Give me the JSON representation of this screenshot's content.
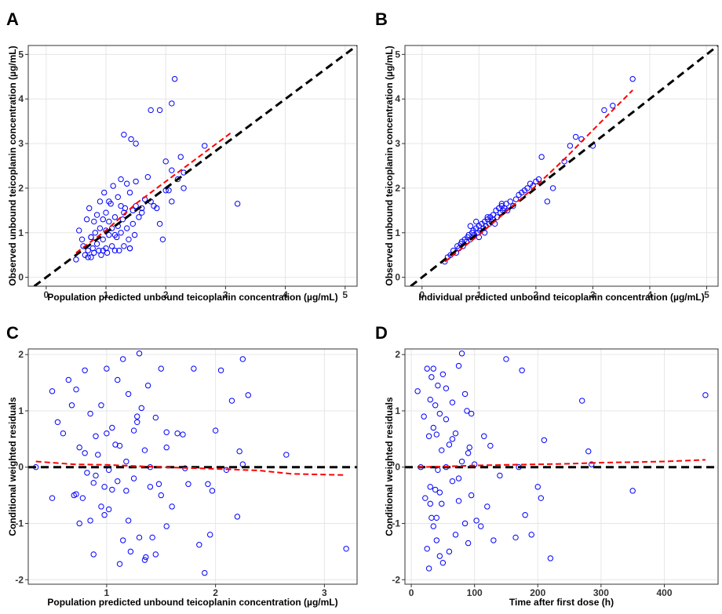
{
  "chart_data": [
    {
      "panel": "A",
      "type": "scatter",
      "xlabel": "Population predicted unbound teicoplanin concentration (µg/mL)",
      "ylabel": "Observed unbound teicoplanin concentration (µg/mL)",
      "xlim": [
        -0.3,
        5.2
      ],
      "ylim": [
        -0.2,
        5.2
      ],
      "xticks": [
        0,
        1,
        2,
        3,
        4,
        5
      ],
      "yticks": [
        0,
        1,
        2,
        3,
        4,
        5
      ],
      "grid": true,
      "reference_line": {
        "type": "identity",
        "color": "#000000",
        "style": "dashed"
      },
      "trend_line": {
        "color": "#ff0000",
        "style": "dashed",
        "x": [
          0.5,
          1.0,
          1.5,
          2.0,
          2.5,
          3.1
        ],
        "y": [
          0.55,
          1.05,
          1.65,
          2.15,
          2.65,
          3.25
        ]
      },
      "points": {
        "color": "#0000ff",
        "x": [
          0.5,
          0.55,
          0.6,
          0.62,
          0.65,
          0.68,
          0.7,
          0.72,
          0.75,
          0.75,
          0.78,
          0.8,
          0.8,
          0.82,
          0.85,
          0.85,
          0.88,
          0.9,
          0.9,
          0.92,
          0.95,
          0.95,
          0.97,
          1.0,
          1.0,
          1.0,
          1.02,
          1.05,
          1.05,
          1.08,
          1.1,
          1.1,
          1.12,
          1.15,
          1.15,
          1.18,
          1.2,
          1.2,
          1.22,
          1.25,
          1.25,
          1.28,
          1.3,
          1.3,
          1.32,
          1.35,
          1.35,
          1.38,
          1.4,
          1.4,
          1.42,
          1.45,
          1.45,
          1.48,
          1.5,
          1.5,
          1.55,
          1.6,
          1.65,
          1.7,
          1.75,
          1.8,
          1.9,
          1.95,
          2.0,
          2.05,
          2.1,
          2.2,
          2.25,
          2.3,
          2.1,
          1.9,
          1.3,
          1.5,
          2.65,
          3.2,
          1.75,
          2.1,
          2.15,
          0.7,
          0.75,
          0.95,
          1.05,
          1.15,
          1.25,
          1.4,
          1.6,
          1.85,
          2.0,
          2.3
        ],
        "y": [
          0.4,
          1.05,
          0.85,
          0.7,
          0.5,
          1.3,
          0.6,
          1.55,
          0.9,
          0.45,
          0.65,
          1.25,
          0.55,
          1.0,
          0.75,
          1.4,
          0.6,
          1.1,
          1.7,
          0.5,
          0.85,
          1.3,
          1.9,
          0.65,
          1.05,
          1.45,
          0.55,
          0.95,
          1.25,
          1.65,
          0.7,
          1.1,
          2.05,
          0.6,
          1.35,
          0.9,
          1.15,
          1.8,
          0.6,
          1.0,
          2.2,
          1.3,
          0.7,
          3.2,
          1.55,
          1.1,
          2.1,
          0.85,
          0.65,
          1.9,
          3.1,
          1.2,
          1.5,
          0.95,
          2.15,
          1.6,
          1.35,
          1.55,
          1.75,
          2.25,
          1.7,
          1.6,
          1.2,
          0.85,
          2.6,
          1.95,
          2.4,
          2.2,
          2.7,
          2.35,
          3.9,
          3.75,
          1.45,
          3.0,
          2.95,
          1.65,
          3.75,
          1.7,
          4.45,
          0.45,
          0.9,
          0.6,
          1.7,
          0.95,
          1.6,
          0.65,
          1.45,
          1.55,
          1.95,
          2.0
        ]
      }
    },
    {
      "panel": "B",
      "type": "scatter",
      "xlabel": "Individual predicted unbound teicoplanin concentration (µg/mL)",
      "ylabel": "Observed unbound teicoplanin concentration (µg/mL)",
      "xlim": [
        -0.3,
        5.2
      ],
      "ylim": [
        -0.2,
        5.2
      ],
      "xticks": [
        0,
        1,
        2,
        3,
        4,
        5
      ],
      "yticks": [
        0,
        1,
        2,
        3,
        4,
        5
      ],
      "grid": true,
      "reference_line": {
        "type": "identity",
        "color": "#000000",
        "style": "dashed"
      },
      "trend_line": {
        "color": "#ff0000",
        "style": "dashed",
        "x": [
          0.4,
          1.0,
          1.5,
          2.0,
          2.5,
          3.0,
          3.7
        ],
        "y": [
          0.35,
          0.95,
          1.5,
          2.05,
          2.65,
          3.3,
          4.2
        ]
      },
      "points": {
        "color": "#0000ff",
        "x": [
          0.4,
          0.45,
          0.5,
          0.55,
          0.6,
          0.62,
          0.65,
          0.68,
          0.7,
          0.72,
          0.75,
          0.78,
          0.8,
          0.82,
          0.85,
          0.88,
          0.9,
          0.92,
          0.95,
          0.98,
          1.0,
          1.02,
          1.05,
          1.08,
          1.1,
          1.12,
          1.15,
          1.18,
          1.2,
          1.22,
          1.25,
          1.28,
          1.3,
          1.32,
          1.35,
          1.38,
          1.4,
          1.42,
          1.45,
          1.48,
          1.5,
          1.55,
          1.6,
          1.65,
          1.7,
          1.75,
          1.8,
          1.85,
          1.9,
          1.95,
          2.0,
          2.05,
          2.1,
          2.2,
          2.3,
          2.5,
          2.6,
          2.7,
          2.8,
          3.0,
          3.2,
          3.35,
          3.7,
          1.0,
          1.1,
          1.25,
          1.4,
          0.85,
          0.95,
          1.15
        ],
        "y": [
          0.35,
          0.45,
          0.5,
          0.6,
          0.55,
          0.7,
          0.65,
          0.75,
          0.8,
          0.7,
          0.85,
          0.8,
          0.9,
          0.95,
          0.85,
          1.0,
          1.05,
          0.95,
          1.1,
          1.0,
          1.15,
          1.05,
          1.2,
          1.1,
          1.25,
          1.15,
          1.3,
          1.2,
          1.35,
          1.25,
          1.4,
          1.2,
          1.5,
          1.35,
          1.55,
          1.45,
          1.6,
          1.5,
          1.55,
          1.65,
          1.5,
          1.7,
          1.6,
          1.75,
          1.85,
          1.9,
          1.95,
          2.0,
          2.1,
          2.05,
          2.15,
          2.2,
          2.7,
          1.7,
          2.0,
          2.6,
          2.95,
          3.15,
          3.1,
          2.95,
          3.75,
          3.85,
          4.45,
          0.9,
          1.0,
          1.3,
          1.65,
          1.15,
          1.25,
          1.35
        ]
      }
    },
    {
      "panel": "C",
      "type": "scatter",
      "xlabel": "Population predicted unbound teicoplanin concentration (µg/mL)",
      "ylabel": "Conditional weighted residuals",
      "xlim": [
        0.28,
        3.3
      ],
      "ylim": [
        -2.08,
        2.1
      ],
      "xticks": [
        1,
        2,
        3
      ],
      "yticks": [
        -2,
        -1,
        0,
        1,
        2
      ],
      "grid": true,
      "reference_line": {
        "type": "horizontal",
        "y": 0,
        "color": "#000000",
        "style": "dashed"
      },
      "trend_line": {
        "color": "#ff0000",
        "style": "dashed",
        "x": [
          0.35,
          0.7,
          1.0,
          1.5,
          2.0,
          2.4,
          2.7,
          3.2
        ],
        "y": [
          0.1,
          0.05,
          0.04,
          0.0,
          -0.03,
          -0.06,
          -0.12,
          -0.14
        ]
      },
      "points": {
        "color": "#0000ff",
        "x": [
          0.35,
          0.5,
          0.5,
          0.55,
          0.6,
          0.65,
          0.7,
          0.72,
          0.72,
          0.75,
          0.75,
          0.78,
          0.8,
          0.8,
          0.82,
          0.85,
          0.85,
          0.88,
          0.9,
          0.9,
          0.92,
          0.95,
          0.95,
          0.98,
          1.0,
          1.0,
          1.02,
          1.05,
          1.05,
          1.08,
          1.1,
          1.1,
          1.12,
          1.15,
          1.15,
          1.18,
          1.2,
          1.2,
          1.22,
          1.25,
          1.25,
          1.28,
          1.3,
          1.3,
          1.32,
          1.35,
          1.35,
          1.38,
          1.4,
          1.4,
          1.42,
          1.45,
          1.45,
          1.48,
          1.5,
          1.5,
          1.55,
          1.55,
          1.6,
          1.65,
          1.7,
          1.75,
          1.8,
          1.85,
          1.9,
          1.95,
          1.97,
          2.0,
          2.05,
          2.1,
          2.15,
          2.2,
          2.25,
          2.25,
          2.3,
          2.65,
          3.2,
          0.88,
          1.02,
          1.12,
          1.36,
          1.55,
          1.72,
          1.93,
          2.22,
          1.18,
          1.28,
          0.68,
          0.98
        ],
        "y": [
          0.0,
          1.35,
          -0.55,
          0.8,
          0.6,
          1.55,
          -0.5,
          1.38,
          -0.48,
          0.35,
          -1.0,
          -0.55,
          1.72,
          0.25,
          -0.1,
          0.95,
          -0.95,
          -1.55,
          0.55,
          -0.15,
          0.22,
          1.1,
          -0.7,
          -0.35,
          1.75,
          0.6,
          -0.05,
          0.7,
          -0.4,
          0.4,
          1.55,
          -0.25,
          0.38,
          1.92,
          -1.3,
          0.1,
          -0.95,
          1.3,
          -1.5,
          0.65,
          -0.2,
          0.8,
          2.02,
          -1.25,
          1.05,
          0.3,
          -1.65,
          1.45,
          0.0,
          -0.35,
          -1.25,
          0.88,
          -1.55,
          -0.3,
          1.75,
          -0.5,
          0.35,
          -1.05,
          -0.7,
          0.6,
          0.58,
          -0.3,
          1.75,
          -1.38,
          -1.88,
          -1.2,
          -0.42,
          0.65,
          1.72,
          -0.05,
          1.18,
          -0.88,
          1.92,
          0.05,
          1.28,
          0.22,
          -1.45,
          -0.28,
          -0.75,
          -1.72,
          -1.6,
          0.62,
          -0.02,
          -0.3,
          0.28,
          -0.42,
          0.9,
          1.1,
          -0.85
        ]
      }
    },
    {
      "panel": "D",
      "type": "scatter",
      "xlabel": "Time after first dose (h)",
      "ylabel": "Conditional weighted residuals",
      "xlim": [
        -10,
        485
      ],
      "ylim": [
        -2.08,
        2.1
      ],
      "xticks": [
        0,
        100,
        200,
        300,
        400
      ],
      "yticks": [
        -2,
        -1,
        0,
        1,
        2
      ],
      "grid": true,
      "reference_line": {
        "type": "horizontal",
        "y": 0,
        "color": "#000000",
        "style": "dashed"
      },
      "trend_line": {
        "color": "#ff0000",
        "style": "dashed",
        "x": [
          10,
          50,
          100,
          150,
          200,
          250,
          300,
          350,
          400,
          465
        ],
        "y": [
          0.0,
          0.01,
          0.03,
          0.04,
          0.05,
          0.06,
          0.08,
          0.09,
          0.1,
          0.13
        ]
      },
      "points": {
        "color": "#0000ff",
        "x": [
          10,
          15,
          20,
          22,
          25,
          25,
          28,
          28,
          30,
          30,
          32,
          32,
          35,
          35,
          38,
          38,
          40,
          40,
          42,
          42,
          45,
          45,
          48,
          48,
          50,
          50,
          55,
          55,
          60,
          60,
          65,
          65,
          70,
          70,
          75,
          75,
          80,
          80,
          85,
          85,
          90,
          90,
          95,
          95,
          100,
          110,
          115,
          120,
          125,
          130,
          140,
          150,
          165,
          170,
          175,
          180,
          190,
          200,
          205,
          210,
          220,
          270,
          280,
          285,
          350,
          465,
          30,
          35,
          40,
          45,
          55,
          65,
          75,
          88,
          92,
          103
        ],
        "y": [
          1.35,
          0.0,
          0.9,
          -0.55,
          1.75,
          -1.45,
          0.55,
          -1.8,
          1.2,
          -0.35,
          1.6,
          -0.9,
          0.7,
          -1.05,
          1.1,
          -0.4,
          0.58,
          -1.3,
          1.45,
          -0.05,
          0.95,
          -1.58,
          0.3,
          -0.65,
          1.65,
          -1.7,
          0.0,
          0.85,
          -1.5,
          0.4,
          1.15,
          -0.25,
          0.6,
          -1.2,
          1.8,
          -0.6,
          2.02,
          0.1,
          -1.0,
          1.3,
          -1.35,
          0.25,
          0.95,
          -0.5,
          0.05,
          -1.05,
          0.55,
          -0.7,
          0.38,
          -1.3,
          -0.15,
          1.92,
          -1.25,
          0.0,
          1.72,
          -0.85,
          -1.2,
          -0.35,
          -0.55,
          0.48,
          -1.62,
          1.18,
          0.28,
          0.05,
          -0.42,
          1.28,
          -0.65,
          1.75,
          -0.9,
          -0.45,
          1.4,
          0.5,
          -0.2,
          1.0,
          0.35,
          -0.95
        ]
      }
    }
  ]
}
